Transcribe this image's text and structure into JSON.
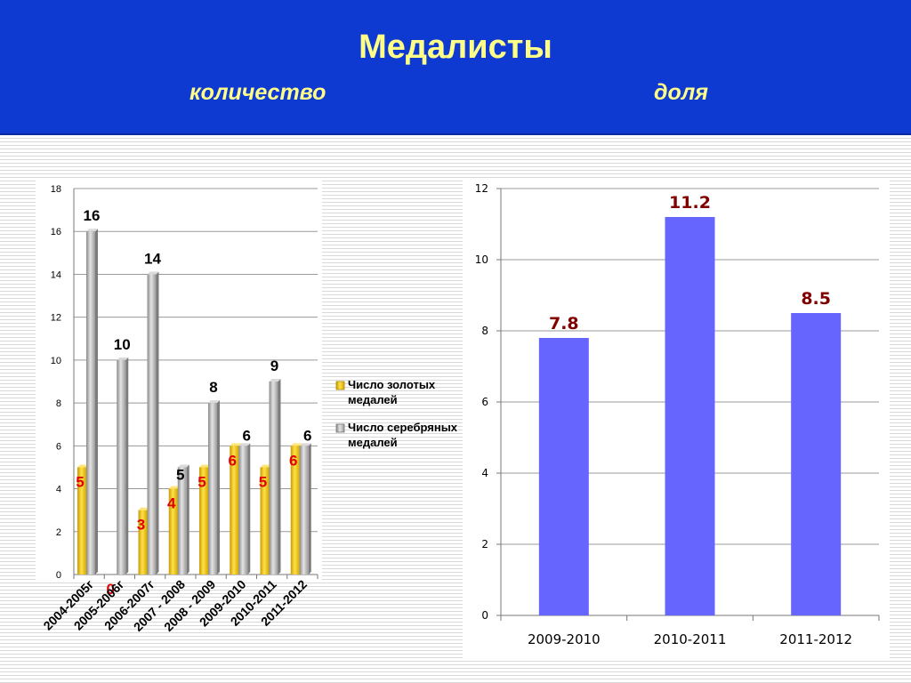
{
  "header": {
    "title": "Медалисты",
    "subtitle_left": "количество",
    "subtitle_right": "доля"
  },
  "colors": {
    "banner": "#0f3ad2",
    "banner_text": "#ffff88",
    "gold": "#f5c800",
    "silver": "#a8a8a8",
    "share_bar": "#6666ff",
    "gold_label": "#e00000",
    "silver_label": "#000000",
    "share_label": "#800000"
  },
  "chart_data": [
    {
      "type": "bar",
      "title": "",
      "xlabel": "",
      "ylabel": "",
      "ylim": [
        0,
        18
      ],
      "yticks": [
        0,
        2,
        4,
        6,
        8,
        10,
        12,
        14,
        16,
        18
      ],
      "grid": true,
      "legend_position": "right",
      "categories": [
        "2004-2005г",
        "2005-2006г",
        "2006-2007г",
        "2007 - 2008",
        "2008 - 2009",
        "2009-2010",
        "2010-2011",
        "2011-2012"
      ],
      "series": [
        {
          "name": "Число золотых медалей",
          "values": [
            5,
            0,
            3,
            4,
            5,
            6,
            5,
            6
          ]
        },
        {
          "name": "Число серебряных медалей",
          "values": [
            16,
            10,
            14,
            5,
            8,
            6,
            9,
            6
          ]
        }
      ]
    },
    {
      "type": "bar",
      "title": "",
      "xlabel": "",
      "ylabel": "",
      "ylim": [
        0,
        12
      ],
      "yticks": [
        0,
        2,
        4,
        6,
        8,
        10,
        12
      ],
      "grid": true,
      "categories": [
        "2009-2010",
        "2010-2011",
        "2011-2012"
      ],
      "values": [
        7.8,
        11.2,
        8.5
      ]
    }
  ]
}
